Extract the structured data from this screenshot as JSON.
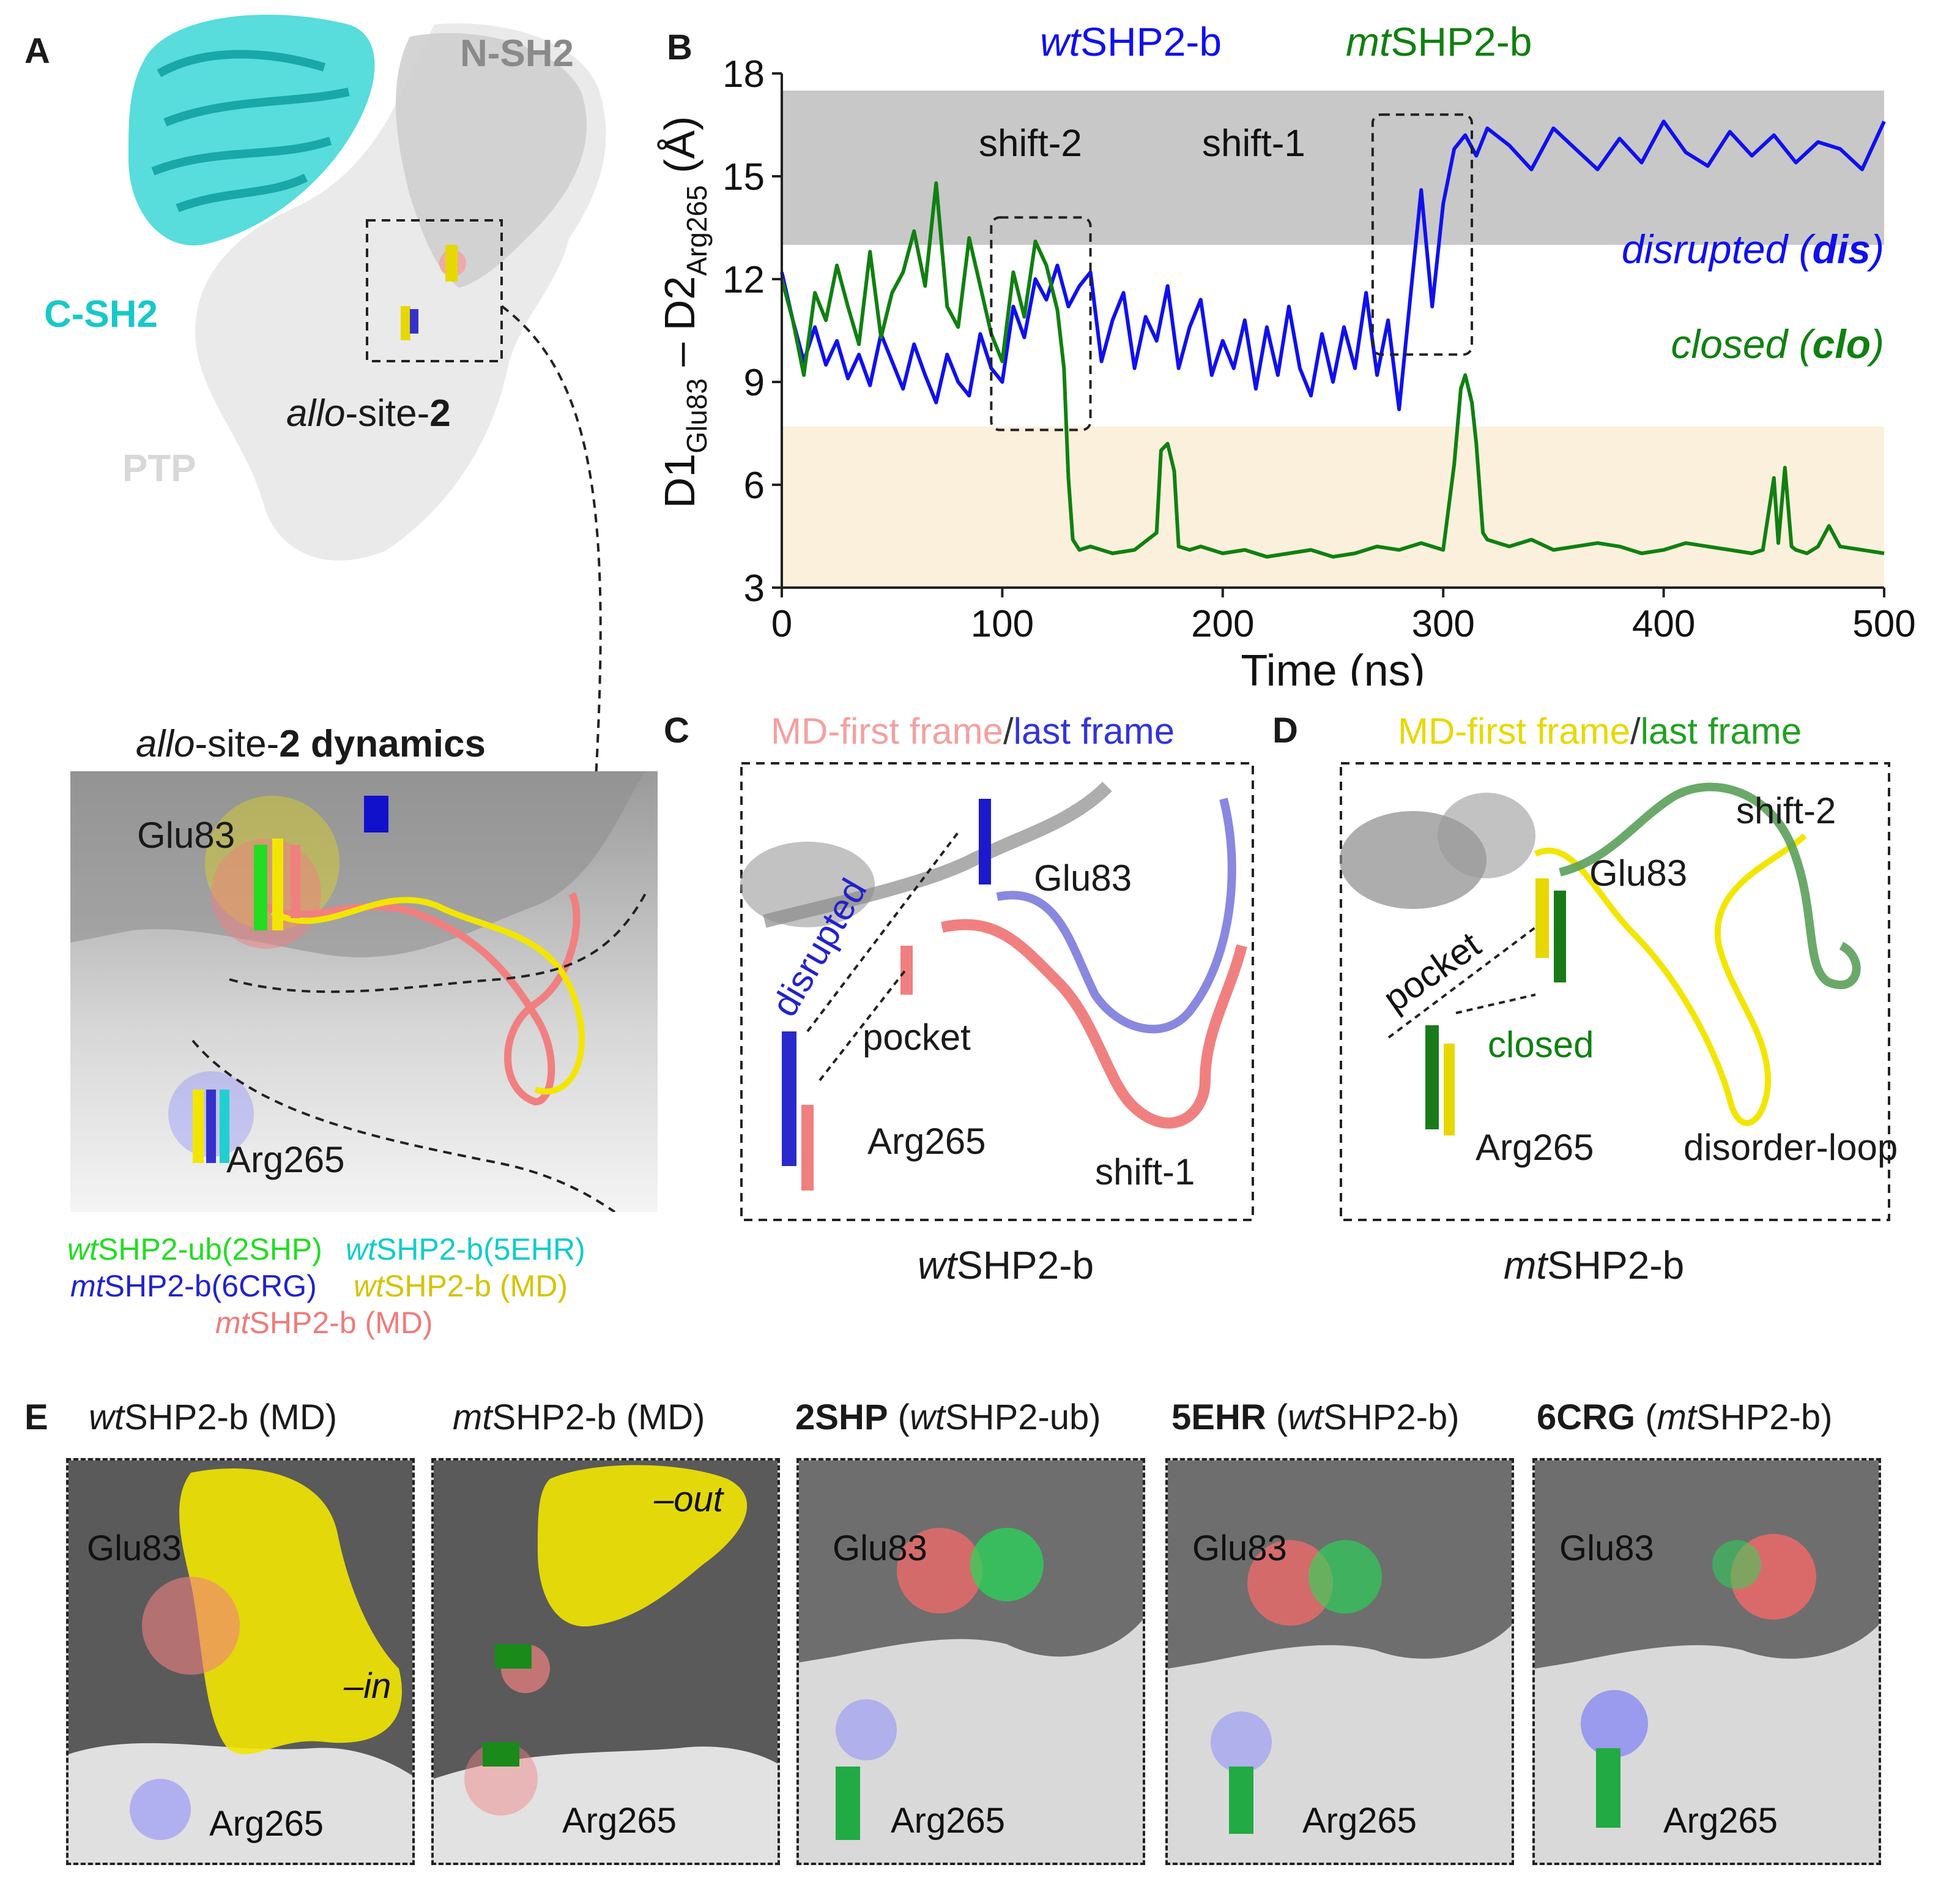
{
  "panels": {
    "A": {
      "letter": "A",
      "labels": {
        "nsh2": "N-SH2",
        "csh2": "C-SH2",
        "ptp": "PTP",
        "allo_prefix": "allo",
        "allo_rest": "-site-",
        "allo_num": "2"
      },
      "dynamics_title": {
        "italic": "allo",
        "mid": "-site-",
        "bold": "2 dynamics"
      },
      "glu": "Glu83",
      "arg": "Arg265",
      "legend": [
        {
          "pre": "wt",
          "post": "SHP2-ub(2SHP)",
          "color": "#22dd22"
        },
        {
          "pre": "wt",
          "post": "SHP2-b(5EHR)",
          "color": "#11cccc"
        },
        {
          "pre": "mt",
          "post": "SHP2-b(6CRG)",
          "color": "#2222cc"
        },
        {
          "pre": "wt",
          "post": "SHP2-b (MD)",
          "color": "#d4c400"
        },
        {
          "pre": "mt",
          "post": "SHP2-b (MD)",
          "color": "#f07b7b"
        }
      ]
    },
    "B": {
      "letter": "B",
      "legend": [
        {
          "pre": "wt",
          "post": "SHP2-b",
          "color": "#1010ee"
        },
        {
          "pre": "mt",
          "post": "SHP2-b",
          "color": "#108010"
        }
      ],
      "annotations": {
        "shift2": "shift-2",
        "shift1": "shift-1",
        "dis_a": "disrupted (",
        "dis_b": "dis",
        "dis_c": ")",
        "clo_a": "closed (",
        "clo_b": "clo",
        "clo_c": ")"
      },
      "ylabel": {
        "a": "D1",
        "b": "Glu83",
        "c": " – D2",
        "d": "Arg265",
        "e": " (Å)"
      }
    },
    "C": {
      "letter": "C",
      "title_first": "MD-first frame",
      "title_sep": "/",
      "title_last": "last frame",
      "labels": {
        "disrupted": "disrupted",
        "pocket": "pocket",
        "glu": "Glu83",
        "arg": "Arg265",
        "shift": "shift-1"
      },
      "caption_pre": "wt",
      "caption_post": "SHP2-b"
    },
    "D": {
      "letter": "D",
      "title_first": "MD-first frame",
      "title_sep": "/",
      "title_last": "last frame",
      "labels": {
        "pocket": "pocket",
        "closed": "closed",
        "glu": "Glu83",
        "arg": "Arg265",
        "shift": "shift-2",
        "loop": "disorder-loop"
      },
      "caption_pre": "mt",
      "caption_post": "SHP2-b"
    },
    "E": {
      "letter": "E",
      "panels": [
        {
          "t_pre": "",
          "t_it": "wt",
          "t_post": "SHP2-b (MD)",
          "glu": "Glu83",
          "arg": "Arg265",
          "note": "–in"
        },
        {
          "t_pre": "",
          "t_it": "mt",
          "t_post": "SHP2-b (MD)",
          "glu": "",
          "arg": "Arg265",
          "note": "–out"
        },
        {
          "t_pre": "2SHP",
          "t_it": "wt",
          "t_post": "SHP2-ub)",
          "glu": "Glu83",
          "arg": "Arg265",
          "note": ""
        },
        {
          "t_pre": "5EHR",
          "t_it": "wt",
          "t_post": "SHP2-b)",
          "glu": "Glu83",
          "arg": "Arg265",
          "note": ""
        },
        {
          "t_pre": "6CRG",
          "t_it": "mt",
          "t_post": "SHP2-b)",
          "glu": "Glu83",
          "arg": "Arg265",
          "note": ""
        }
      ]
    }
  },
  "colors": {
    "wt": "#1010ee",
    "mt": "#108010",
    "dis_band": "#c8c8c8",
    "clo_band": "#fbf0dc",
    "cyan": "#20d0d0",
    "yellow": "#f2e600",
    "salmon": "#f08080"
  },
  "chart_data": {
    "type": "line",
    "title": "",
    "xlabel": "Time (ns)",
    "ylabel": "D1Glu83 – D2Arg265 (Å)",
    "xlim": [
      0,
      500
    ],
    "ylim": [
      3,
      18
    ],
    "xticks": [
      0,
      100,
      200,
      300,
      400,
      500
    ],
    "yticks": [
      3,
      6,
      9,
      12,
      15,
      18
    ],
    "bands": [
      {
        "name": "disrupted (dis)",
        "y0": 13,
        "y1": 17.5
      },
      {
        "name": "closed (clo)",
        "y0": 3,
        "y1": 7.7
      }
    ],
    "boxes": [
      {
        "name": "shift-2",
        "x0": 95,
        "x1": 140,
        "y0": 7.6,
        "y1": 13.8
      },
      {
        "name": "shift-1",
        "x0": 268,
        "x1": 313,
        "y0": 9.8,
        "y1": 16.8
      }
    ],
    "series": [
      {
        "name": "wtSHP2-b",
        "color": "#1010ee",
        "x": [
          0,
          5,
          10,
          15,
          20,
          25,
          30,
          35,
          40,
          45,
          50,
          55,
          60,
          65,
          70,
          75,
          80,
          85,
          90,
          95,
          100,
          105,
          110,
          115,
          120,
          125,
          130,
          135,
          140,
          145,
          150,
          155,
          160,
          165,
          170,
          175,
          180,
          185,
          190,
          195,
          200,
          205,
          210,
          215,
          220,
          225,
          230,
          235,
          240,
          245,
          250,
          255,
          260,
          265,
          270,
          275,
          280,
          285,
          290,
          295,
          300,
          305,
          310,
          315,
          320,
          330,
          340,
          350,
          360,
          370,
          380,
          390,
          400,
          410,
          420,
          430,
          440,
          450,
          460,
          470,
          480,
          490,
          500
        ],
        "y": [
          12.2,
          10.8,
          9.6,
          10.6,
          9.5,
          10.2,
          9.1,
          9.8,
          8.9,
          10.4,
          9.6,
          8.8,
          10.1,
          9.2,
          8.4,
          9.8,
          9.0,
          8.6,
          10.4,
          9.4,
          9.0,
          11.2,
          10.3,
          12.0,
          11.4,
          12.4,
          11.2,
          11.8,
          12.2,
          9.6,
          10.8,
          11.6,
          9.4,
          10.9,
          10.2,
          11.8,
          9.4,
          10.6,
          11.4,
          9.2,
          10.2,
          9.4,
          10.8,
          8.8,
          10.6,
          9.2,
          11.2,
          9.4,
          8.6,
          10.4,
          9.0,
          10.6,
          9.4,
          11.6,
          9.2,
          10.8,
          8.2,
          11.4,
          14.6,
          11.2,
          14.2,
          15.8,
          16.2,
          15.6,
          16.4,
          15.9,
          15.2,
          16.4,
          15.8,
          15.2,
          16.1,
          15.4,
          16.6,
          15.7,
          15.3,
          16.3,
          15.6,
          16.2,
          15.4,
          16.0,
          15.8,
          15.2,
          16.6
        ]
      },
      {
        "name": "mtSHP2-b",
        "color": "#108010",
        "x": [
          0,
          5,
          10,
          15,
          20,
          25,
          30,
          35,
          40,
          45,
          50,
          55,
          60,
          65,
          70,
          75,
          80,
          85,
          90,
          95,
          100,
          105,
          110,
          115,
          120,
          125,
          128,
          130,
          132,
          135,
          140,
          150,
          160,
          170,
          172,
          175,
          178,
          180,
          185,
          190,
          200,
          210,
          220,
          230,
          240,
          250,
          260,
          270,
          280,
          290,
          300,
          305,
          308,
          310,
          313,
          315,
          318,
          320,
          325,
          330,
          340,
          350,
          360,
          370,
          380,
          390,
          400,
          410,
          420,
          430,
          440,
          445,
          450,
          452,
          455,
          458,
          460,
          465,
          470,
          475,
          480,
          490,
          500
        ],
        "y": [
          12.0,
          10.8,
          9.2,
          11.6,
          10.8,
          12.4,
          11.2,
          10.1,
          12.8,
          10.3,
          11.6,
          12.2,
          13.4,
          11.8,
          14.8,
          11.2,
          10.6,
          13.2,
          11.8,
          10.4,
          9.6,
          12.2,
          10.9,
          13.1,
          12.4,
          11.1,
          9.4,
          6.2,
          4.4,
          4.1,
          4.2,
          4.0,
          4.1,
          4.6,
          7.0,
          7.2,
          6.4,
          4.2,
          4.1,
          4.2,
          4.0,
          4.1,
          3.9,
          4.0,
          4.1,
          3.9,
          4.0,
          4.2,
          4.1,
          4.3,
          4.1,
          6.6,
          8.8,
          9.2,
          8.4,
          7.2,
          4.6,
          4.4,
          4.3,
          4.2,
          4.4,
          4.1,
          4.2,
          4.3,
          4.2,
          4.0,
          4.1,
          4.3,
          4.2,
          4.1,
          4.0,
          4.1,
          6.2,
          4.3,
          6.5,
          4.2,
          4.1,
          4.0,
          4.2,
          4.8,
          4.2,
          4.1,
          4.0
        ]
      }
    ]
  }
}
